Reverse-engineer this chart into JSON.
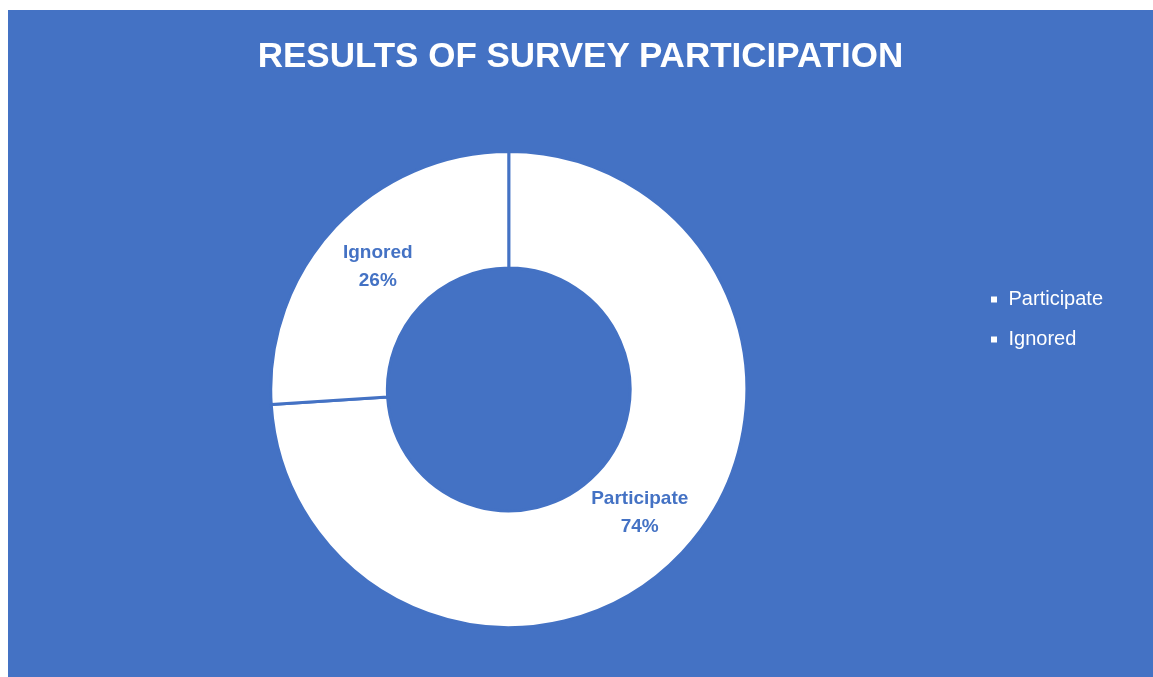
{
  "chart_data": {
    "type": "donut",
    "title": "RESULTS OF SURVEY PARTICIPATION",
    "categories": [
      "Participate",
      "Ignored"
    ],
    "values": [
      74,
      26
    ],
    "colors": [
      "#ffffff",
      "#ffffff"
    ],
    "value_labels": [
      "74%",
      "26%"
    ],
    "legend": "right"
  }
}
